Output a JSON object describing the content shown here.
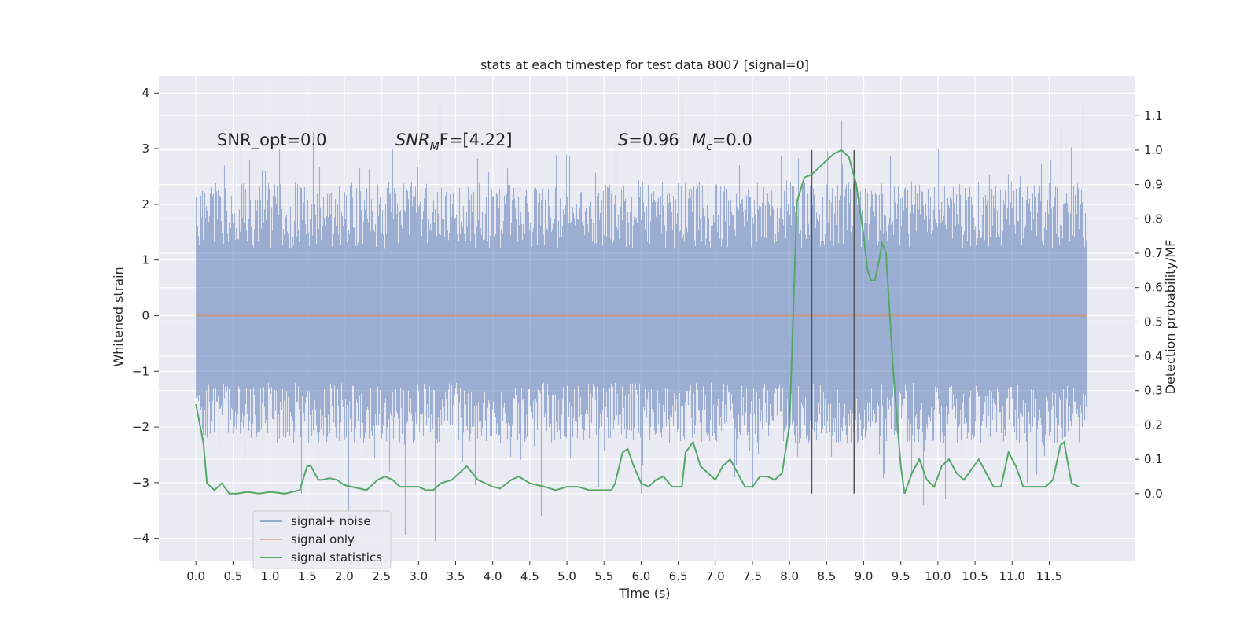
{
  "chart_data": {
    "type": "line",
    "title": "stats at each timestep for test data 8007 [signal=0]",
    "xlabel": "Time (s)",
    "ylabel": "Whitened strain",
    "y2label": "Detection probability/MF",
    "xlim": [
      -0.5,
      12.65
    ],
    "ylim": [
      -4.4,
      4.3
    ],
    "y2lim": [
      -0.195,
      1.215
    ],
    "x_ticks": [
      "0.0",
      "0.5",
      "1.0",
      "1.5",
      "2.0",
      "2.5",
      "3.0",
      "3.5",
      "4.0",
      "4.5",
      "5.0",
      "5.5",
      "6.0",
      "6.5",
      "7.0",
      "7.5",
      "8.0",
      "8.5",
      "9.0",
      "9.5",
      "10.0",
      "10.5",
      "11.0",
      "11.5"
    ],
    "y_ticks": [
      "4",
      "3",
      "2",
      "1",
      "0",
      "−1",
      "−2",
      "−3",
      "−4"
    ],
    "y2_ticks": [
      "1.1",
      "1.0",
      "0.9",
      "0.8",
      "0.7",
      "0.6",
      "0.5",
      "0.4",
      "0.3",
      "0.2",
      "0.1",
      "0.0"
    ],
    "grid": true,
    "legend_position": "lower-left",
    "colors": {
      "noise": "#4c72b0",
      "signal": "#dd8452",
      "stats": "#55a868",
      "plot_bg": "#eaeaf2",
      "vline": "#555555"
    },
    "annotations": {
      "snr_opt": "SNR_opt=0.0",
      "snr_mf_prefix": "SNR",
      "snr_mf_sub": "M",
      "snr_mf_rest": "F=[4.22]",
      "s_label": "S",
      "s_value": "=0.96",
      "mc_label": "M",
      "mc_sub": "c",
      "mc_value": "=0.0"
    },
    "vertical_lines_x": [
      8.3,
      8.87
    ],
    "series": [
      {
        "name": "signal+ noise",
        "duration": 12.0,
        "typical_envelope": [
          -2.3,
          2.4
        ],
        "peaks": [
          {
            "x": 0.38,
            "y": 2.7
          },
          {
            "x": 0.72,
            "y": 2.8
          },
          {
            "x": 1.12,
            "y": 3.0
          },
          {
            "x": 1.58,
            "y": 3.3
          },
          {
            "x": 2.65,
            "y": 3.0
          },
          {
            "x": 3.28,
            "y": 3.8
          },
          {
            "x": 4.12,
            "y": 3.9
          },
          {
            "x": 5.66,
            "y": 3.1
          },
          {
            "x": 6.55,
            "y": 3.9
          },
          {
            "x": 8.7,
            "y": 3.5
          },
          {
            "x": 10.0,
            "y": 3.0
          },
          {
            "x": 11.65,
            "y": 3.4
          },
          {
            "x": 11.95,
            "y": 3.8
          }
        ],
        "troughs": [
          {
            "x": 1.42,
            "y": -3.2
          },
          {
            "x": 2.05,
            "y": -3.7
          },
          {
            "x": 2.82,
            "y": -3.95
          },
          {
            "x": 3.22,
            "y": -4.05
          },
          {
            "x": 4.65,
            "y": -3.6
          },
          {
            "x": 6.0,
            "y": -3.2
          },
          {
            "x": 7.5,
            "y": -3.1
          },
          {
            "x": 9.8,
            "y": -3.4
          },
          {
            "x": 10.1,
            "y": -3.3
          },
          {
            "x": 11.2,
            "y": -3.0
          }
        ]
      },
      {
        "name": "signal only",
        "x": [
          0,
          12
        ],
        "values": [
          0,
          0
        ]
      },
      {
        "name": "signal statistics",
        "axis": "right",
        "x": [
          0.0,
          0.1,
          0.15,
          0.25,
          0.35,
          0.45,
          0.55,
          0.7,
          0.85,
          1.0,
          1.2,
          1.4,
          1.5,
          1.55,
          1.6,
          1.65,
          1.7,
          1.8,
          1.9,
          2.0,
          2.1,
          2.3,
          2.45,
          2.55,
          2.65,
          2.75,
          2.85,
          3.0,
          3.1,
          3.2,
          3.3,
          3.45,
          3.55,
          3.65,
          3.8,
          4.0,
          4.1,
          4.25,
          4.35,
          4.5,
          4.7,
          4.85,
          5.0,
          5.15,
          5.3,
          5.45,
          5.6,
          5.65,
          5.75,
          5.82,
          5.9,
          6.0,
          6.1,
          6.2,
          6.3,
          6.42,
          6.55,
          6.6,
          6.7,
          6.8,
          6.9,
          7.0,
          7.1,
          7.2,
          7.3,
          7.4,
          7.5,
          7.6,
          7.7,
          7.8,
          7.9,
          8.0,
          8.1,
          8.2,
          8.3,
          8.4,
          8.5,
          8.6,
          8.7,
          8.8,
          8.9,
          9.0,
          9.05,
          9.1,
          9.15,
          9.2,
          9.25,
          9.3,
          9.4,
          9.5,
          9.55,
          9.65,
          9.75,
          9.85,
          9.95,
          10.05,
          10.15,
          10.25,
          10.35,
          10.45,
          10.55,
          10.65,
          10.75,
          10.85,
          10.95,
          11.0,
          11.05,
          11.15,
          11.25,
          11.45,
          11.55,
          11.65,
          11.7,
          11.8,
          11.9
        ],
        "values": [
          0.26,
          0.15,
          0.03,
          0.01,
          0.03,
          0.0,
          0.0,
          0.005,
          0.0,
          0.005,
          0.0,
          0.01,
          0.08,
          0.08,
          0.06,
          0.04,
          0.04,
          0.045,
          0.04,
          0.025,
          0.02,
          0.01,
          0.04,
          0.05,
          0.04,
          0.02,
          0.02,
          0.02,
          0.01,
          0.01,
          0.03,
          0.04,
          0.06,
          0.08,
          0.04,
          0.02,
          0.015,
          0.04,
          0.05,
          0.03,
          0.02,
          0.01,
          0.02,
          0.02,
          0.01,
          0.01,
          0.01,
          0.03,
          0.12,
          0.13,
          0.08,
          0.03,
          0.02,
          0.04,
          0.05,
          0.02,
          0.02,
          0.12,
          0.15,
          0.08,
          0.06,
          0.04,
          0.08,
          0.1,
          0.06,
          0.02,
          0.02,
          0.05,
          0.05,
          0.04,
          0.06,
          0.2,
          0.85,
          0.92,
          0.93,
          0.95,
          0.97,
          0.99,
          1.0,
          0.98,
          0.9,
          0.75,
          0.65,
          0.62,
          0.62,
          0.67,
          0.73,
          0.7,
          0.35,
          0.08,
          0.0,
          0.06,
          0.1,
          0.04,
          0.02,
          0.08,
          0.1,
          0.06,
          0.04,
          0.07,
          0.1,
          0.06,
          0.02,
          0.02,
          0.12,
          0.1,
          0.08,
          0.02,
          0.02,
          0.02,
          0.04,
          0.14,
          0.15,
          0.03,
          0.02
        ]
      }
    ]
  }
}
